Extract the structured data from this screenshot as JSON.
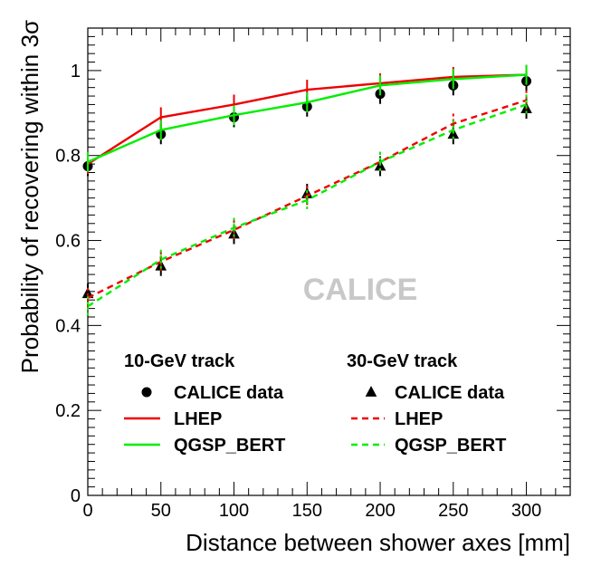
{
  "chart_data": {
    "type": "line",
    "xlabel": "Distance between shower axes [mm]",
    "ylabel": "Probability of recovering within 3σ",
    "xlim": [
      0,
      330
    ],
    "ylim": [
      0,
      1.1
    ],
    "x_ticks": [
      "0",
      "50",
      "100",
      "150",
      "200",
      "250",
      "300"
    ],
    "y_ticks": [
      "0",
      "0.2",
      "0.4",
      "0.6",
      "0.8",
      "1"
    ],
    "watermark": "CALICE",
    "groups": [
      {
        "header": "10-GeV track",
        "series": [
          {
            "name": "CALICE data",
            "kind": "data",
            "marker": "circle",
            "color": "#000000",
            "x": [
              0,
              50,
              100,
              150,
              200,
              250,
              300
            ],
            "y": [
              0.775,
              0.85,
              0.89,
              0.915,
              0.945,
              0.965,
              0.975
            ]
          },
          {
            "name": "LHEP",
            "kind": "line",
            "dashed": false,
            "color": "#ee0000",
            "x": [
              0,
              50,
              100,
              150,
              200,
              250,
              300
            ],
            "y": [
              0.78,
              0.89,
              0.92,
              0.955,
              0.97,
              0.985,
              0.99
            ]
          },
          {
            "name": "QGSP_BERT",
            "kind": "line",
            "dashed": false,
            "color": "#00ee00",
            "x": [
              0,
              50,
              100,
              150,
              200,
              250,
              300
            ],
            "y": [
              0.785,
              0.86,
              0.895,
              0.925,
              0.965,
              0.98,
              0.99
            ]
          }
        ]
      },
      {
        "header": "30-GeV track",
        "series": [
          {
            "name": "CALICE data",
            "kind": "data",
            "marker": "triangle",
            "color": "#000000",
            "x": [
              0,
              50,
              100,
              150,
              200,
              250,
              300
            ],
            "y": [
              0.475,
              0.54,
              0.615,
              0.71,
              0.775,
              0.85,
              0.91
            ]
          },
          {
            "name": "LHEP",
            "kind": "line",
            "dashed": true,
            "color": "#ee0000",
            "x": [
              0,
              50,
              100,
              150,
              200,
              250,
              300
            ],
            "y": [
              0.465,
              0.55,
              0.625,
              0.705,
              0.785,
              0.875,
              0.93
            ]
          },
          {
            "name": "QGSP_BERT",
            "kind": "line",
            "dashed": true,
            "color": "#00ee00",
            "x": [
              0,
              50,
              100,
              150,
              200,
              250,
              300
            ],
            "y": [
              0.445,
              0.555,
              0.63,
              0.695,
              0.785,
              0.86,
              0.92
            ]
          }
        ]
      }
    ]
  }
}
